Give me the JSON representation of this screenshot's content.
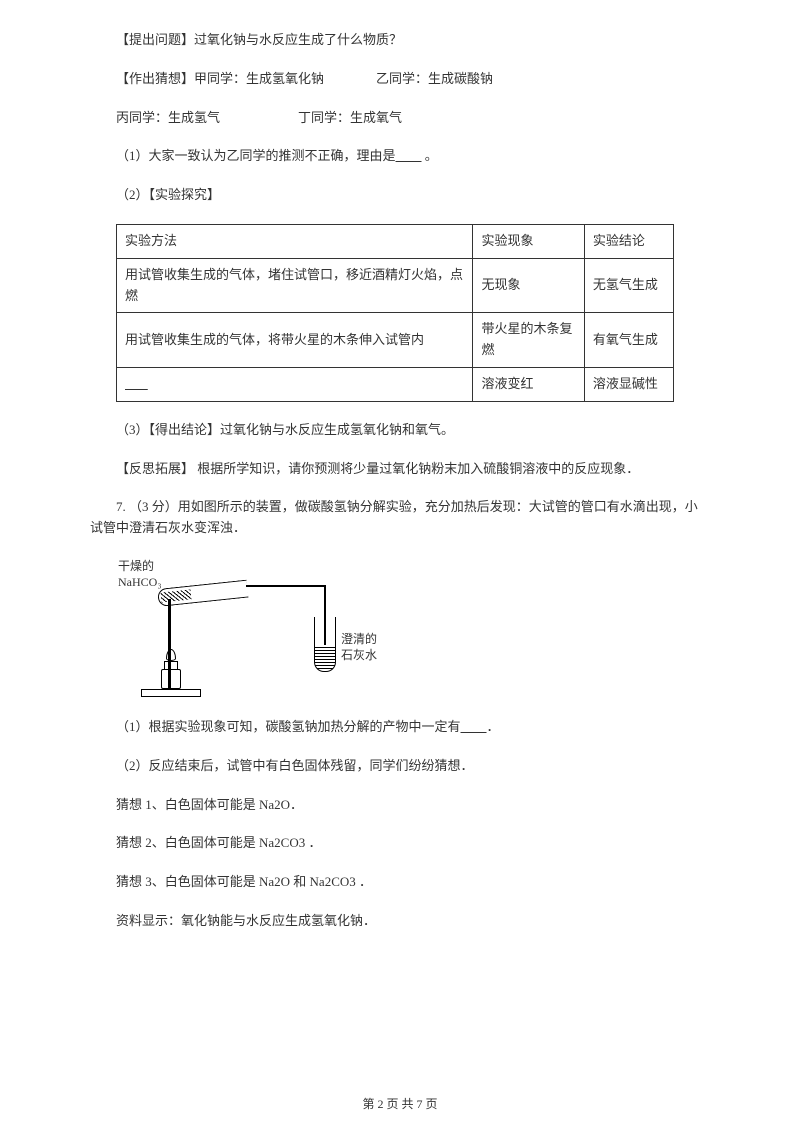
{
  "sections": {
    "question": "【提出问题】过氧化钠与水反应生成了什么物质？",
    "guess_ab": "【作出猜想】甲同学：生成氢氧化钠",
    "guess_b": "乙同学：生成碳酸钠",
    "guess_c": "丙同学：生成氢气",
    "guess_d": "丁同学：生成氧气",
    "item1": "（1）大家一致认为乙同学的推测不正确，理由是",
    "item1_end": " 。",
    "item2": "（2）【实验探究】",
    "table": {
      "headers": [
        "实验方法",
        "实验现象",
        "实验结论"
      ],
      "rows": [
        [
          "用试管收集生成的气体，堵住试管口，移近酒精灯火焰，点燃",
          "无现象",
          "无氢气生成"
        ],
        [
          "用试管收集生成的气体，将带火星的木条伸入试管内",
          "带火星的木条复燃",
          "有氧气生成"
        ],
        [
          "",
          "溶液变红",
          "溶液显碱性"
        ]
      ]
    },
    "item3": "（3）【得出结论】过氧化钠与水反应生成氢氧化钠和氧气。",
    "reflect": "【反思拓展】 根据所学知识，请你预测将少量过氧化钠粉末加入硫酸铜溶液中的反应现象．",
    "q7": "7.   （3 分）用如图所示的装置，做碳酸氢钠分解实验，充分加热后发现：大试管的管口有水滴出现，小试管中澄清石灰水变浑浊．",
    "label1a": "干燥的",
    "label1b": "NaHCO₃",
    "label2a": "澄清的",
    "label2b": "石灰水",
    "q7_1": "（1）根据实验现象可知，碳酸氢钠加热分解的产物中一定有",
    "q7_1_end": "．",
    "q7_2": "（2）反应结束后，试管中有白色固体残留，同学们纷纷猜想．",
    "guess1": "猜想 1、白色固体可能是 Na2O．",
    "guess2": "猜想 2、白色固体可能是 Na2CO3 ．",
    "guess3": "猜想 3、白色固体可能是 Na2O 和 Na2CO3 ．",
    "info": "资料显示：氧化钠能与水反应生成氢氧化钠．",
    "footer": "第 2 页 共 7 页"
  },
  "colors": {
    "text": "#333333",
    "border": "#333333",
    "background": "#ffffff"
  },
  "fonts": {
    "body_size": 13,
    "footer_size": 12
  }
}
